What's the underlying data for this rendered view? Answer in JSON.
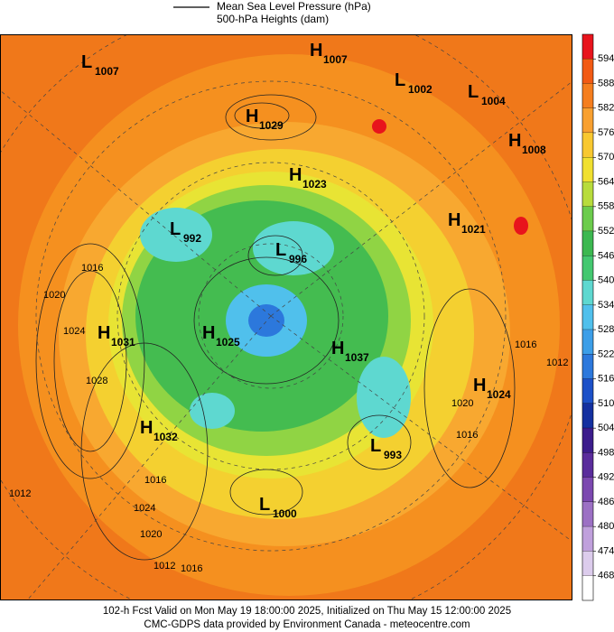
{
  "header": {
    "lines": [
      "Mean Sea Level Pressure (hPa)",
      "500-hPa Heights (dam)"
    ]
  },
  "colorbar": {
    "levels": [
      594,
      588,
      582,
      576,
      570,
      564,
      558,
      552,
      546,
      540,
      534,
      528,
      522,
      516,
      510,
      504,
      498,
      492,
      486,
      480,
      474,
      468
    ],
    "colors": [
      "#e8141c",
      "#f25a14",
      "#f57e1e",
      "#f8a030",
      "#f8c830",
      "#f0e030",
      "#b8dc3c",
      "#6ccc4c",
      "#3cb850",
      "#44c870",
      "#5ed8d0",
      "#50c0ec",
      "#3c9ee8",
      "#2c78dc",
      "#1c50c8",
      "#1430a0",
      "#3c1c8c",
      "#5a2c9c",
      "#7c48b0",
      "#9c70c4",
      "#c0a0dc",
      "#dcccec"
    ]
  },
  "centers": [
    {
      "kind": "L",
      "value": "1007"
    },
    {
      "kind": "H",
      "value": "1007"
    },
    {
      "kind": "L",
      "value": "1002"
    },
    {
      "kind": "L",
      "value": "1004"
    },
    {
      "kind": "H",
      "value": "1029"
    },
    {
      "kind": "H",
      "value": "1008"
    },
    {
      "kind": "H",
      "value": "1023"
    },
    {
      "kind": "H",
      "value": "1021"
    },
    {
      "kind": "L",
      "value": "992"
    },
    {
      "kind": "L",
      "value": "996"
    },
    {
      "kind": "H",
      "value": "1031"
    },
    {
      "kind": "H",
      "value": "1025"
    },
    {
      "kind": "H",
      "value": "1037"
    },
    {
      "kind": "H",
      "value": "1024"
    },
    {
      "kind": "H",
      "value": "1032"
    },
    {
      "kind": "L",
      "value": "993"
    },
    {
      "kind": "L",
      "value": "1000"
    }
  ],
  "isobar_labels": [
    "1016",
    "1020",
    "1024",
    "1028",
    "1012",
    "1016",
    "1020",
    "1024",
    "1012",
    "1016",
    "1020",
    "1016",
    "1016",
    "1012"
  ],
  "footer": {
    "lines": [
      "102-h Fcst Valid on Mon May 19 18:00:00 2025, Initialized on Thu May 15 12:00:00 2025",
      "CMC-GDPS data provided by Environment Canada - meteocentre.com"
    ]
  }
}
